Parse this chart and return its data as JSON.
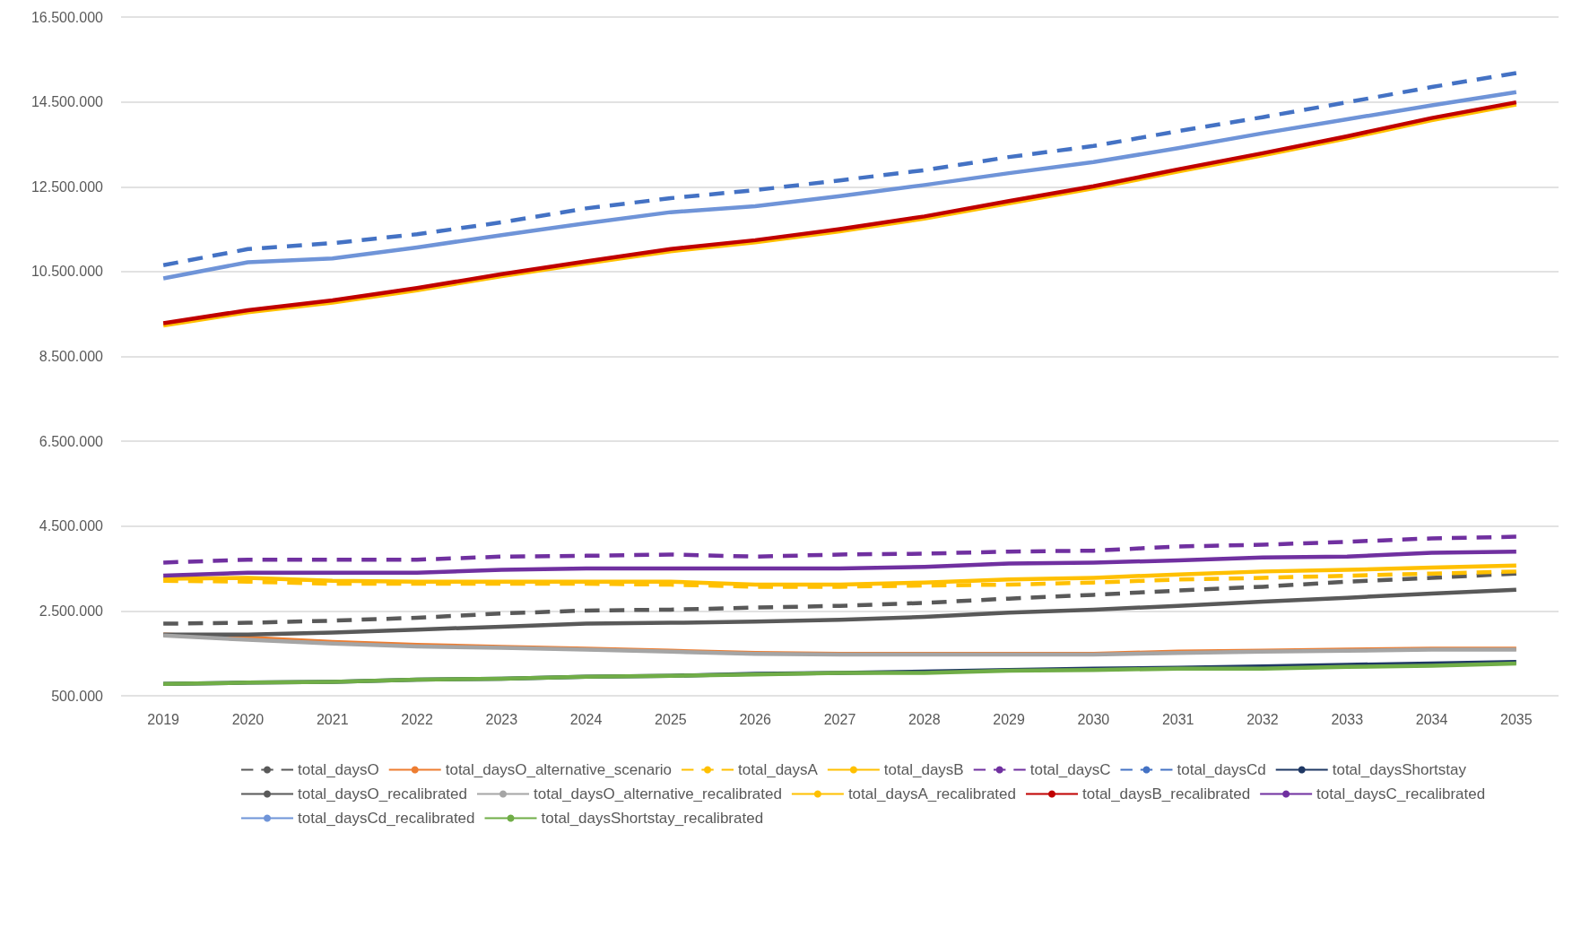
{
  "chart_data": {
    "type": "line",
    "categories": [
      "2019",
      "2020",
      "2021",
      "2022",
      "2023",
      "2024",
      "2025",
      "2026",
      "2027",
      "2028",
      "2029",
      "2030",
      "2031",
      "2032",
      "2033",
      "2034",
      "2035"
    ],
    "ylim": [
      500000,
      16500000
    ],
    "yticks": [
      {
        "value": 500000,
        "label": "500.000"
      },
      {
        "value": 2500000,
        "label": "2.500.000"
      },
      {
        "value": 4500000,
        "label": "4.500.000"
      },
      {
        "value": 6500000,
        "label": "6.500.000"
      },
      {
        "value": 8500000,
        "label": "8.500.000"
      },
      {
        "value": 10500000,
        "label": "10.500.000"
      },
      {
        "value": 12500000,
        "label": "12.500.000"
      },
      {
        "value": 14500000,
        "label": "14.500.000"
      },
      {
        "value": 16500000,
        "label": "16.500.000"
      }
    ],
    "grid": "y",
    "legend": "bottom",
    "marker": "none",
    "series": [
      {
        "name": "total_daysO",
        "color": "#595959",
        "line_style": "dashed",
        "values": [
          2200000,
          2220000,
          2270000,
          2340000,
          2440000,
          2510000,
          2530000,
          2580000,
          2620000,
          2690000,
          2790000,
          2880000,
          2980000,
          3070000,
          3190000,
          3280000,
          3380000
        ]
      },
      {
        "name": "total_daysO_alternative_scenario",
        "color": "#ed7d31",
        "line_style": "solid",
        "values": [
          1940000,
          1870000,
          1770000,
          1700000,
          1650000,
          1610000,
          1560000,
          1510000,
          1490000,
          1490000,
          1490000,
          1490000,
          1540000,
          1560000,
          1590000,
          1610000,
          1610000
        ]
      },
      {
        "name": "total_daysA",
        "color": "#ffc000",
        "line_style": "dashed",
        "values": [
          3210000,
          3190000,
          3140000,
          3140000,
          3140000,
          3140000,
          3120000,
          3070000,
          3070000,
          3100000,
          3120000,
          3170000,
          3240000,
          3280000,
          3330000,
          3380000,
          3430000
        ]
      },
      {
        "name": "total_daysB",
        "color": "#ffc000",
        "line_style": "solid",
        "values": [
          3260000,
          3280000,
          3210000,
          3190000,
          3190000,
          3190000,
          3190000,
          3120000,
          3120000,
          3170000,
          3240000,
          3280000,
          3360000,
          3430000,
          3470000,
          3520000,
          3570000
        ]
      },
      {
        "name": "total_daysC",
        "color": "#7030a0",
        "line_style": "dashed",
        "values": [
          3640000,
          3710000,
          3710000,
          3710000,
          3780000,
          3800000,
          3830000,
          3780000,
          3830000,
          3850000,
          3900000,
          3920000,
          4020000,
          4060000,
          4130000,
          4210000,
          4250000
        ]
      },
      {
        "name": "total_daysCd",
        "color": "#4472c4",
        "line_style": "dashed",
        "values": [
          10650000,
          11030000,
          11170000,
          11380000,
          11660000,
          11990000,
          12230000,
          12420000,
          12650000,
          12890000,
          13200000,
          13460000,
          13810000,
          14140000,
          14490000,
          14850000,
          15180000
        ]
      },
      {
        "name": "total_daysShortstay",
        "color": "#1f3864",
        "line_style": "solid",
        "values": [
          780000,
          810000,
          830000,
          880000,
          900000,
          950000,
          970000,
          1020000,
          1040000,
          1070000,
          1110000,
          1140000,
          1160000,
          1190000,
          1230000,
          1260000,
          1300000
        ]
      },
      {
        "name": "total_daysO_recalibrated",
        "color": "#595959",
        "line_style": "solid",
        "values": [
          1940000,
          1940000,
          1990000,
          2060000,
          2130000,
          2200000,
          2220000,
          2250000,
          2290000,
          2360000,
          2460000,
          2530000,
          2620000,
          2720000,
          2810000,
          2910000,
          3000000
        ]
      },
      {
        "name": "total_daysO_alternative_recalibrated",
        "color": "#a5a5a5",
        "line_style": "solid",
        "values": [
          1920000,
          1820000,
          1730000,
          1660000,
          1630000,
          1590000,
          1540000,
          1490000,
          1470000,
          1470000,
          1470000,
          1470000,
          1510000,
          1540000,
          1560000,
          1590000,
          1590000
        ]
      },
      {
        "name": "total_daysA_recalibrated",
        "color": "#ffc000",
        "line_style": "solid",
        "values": [
          9230000,
          9540000,
          9770000,
          10060000,
          10390000,
          10690000,
          10980000,
          11190000,
          11450000,
          11750000,
          12110000,
          12460000,
          12860000,
          13240000,
          13640000,
          14070000,
          14440000
        ]
      },
      {
        "name": "total_daysB_recalibrated",
        "color": "#c00000",
        "line_style": "solid",
        "values": [
          9280000,
          9590000,
          9820000,
          10110000,
          10440000,
          10740000,
          11030000,
          11240000,
          11500000,
          11800000,
          12160000,
          12510000,
          12910000,
          13290000,
          13690000,
          14120000,
          14490000
        ]
      },
      {
        "name": "total_daysC_recalibrated",
        "color": "#7030a0",
        "line_style": "solid",
        "values": [
          3330000,
          3400000,
          3400000,
          3400000,
          3470000,
          3500000,
          3500000,
          3500000,
          3500000,
          3540000,
          3620000,
          3640000,
          3690000,
          3760000,
          3780000,
          3870000,
          3900000
        ]
      },
      {
        "name": "total_daysCd_recalibrated",
        "color": "#6f94d8",
        "line_style": "solid",
        "values": [
          10340000,
          10720000,
          10810000,
          11070000,
          11360000,
          11640000,
          11900000,
          12040000,
          12280000,
          12540000,
          12820000,
          13080000,
          13410000,
          13760000,
          14090000,
          14420000,
          14730000
        ]
      },
      {
        "name": "total_daysShortstay_recalibrated",
        "color": "#70ad47",
        "line_style": "solid",
        "values": [
          780000,
          810000,
          830000,
          880000,
          900000,
          950000,
          970000,
          1000000,
          1040000,
          1040000,
          1090000,
          1110000,
          1140000,
          1140000,
          1180000,
          1210000,
          1260000
        ]
      }
    ]
  }
}
